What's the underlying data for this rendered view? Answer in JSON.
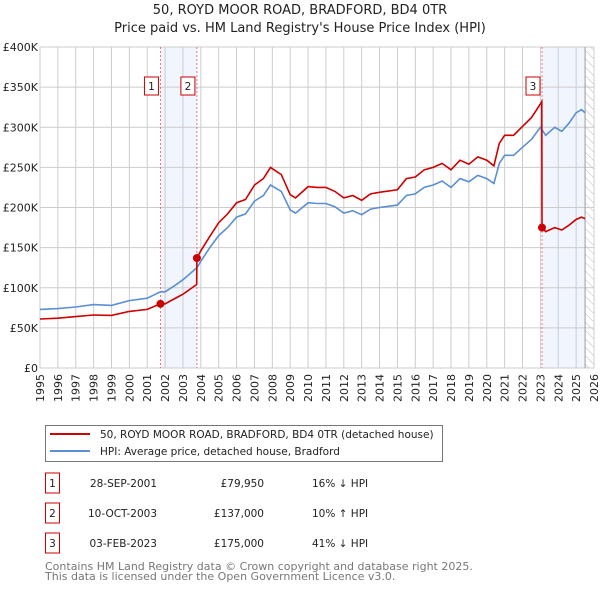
{
  "chart_data": {
    "type": "line",
    "title": "50, ROYD MOOR ROAD, BRADFORD, BD4 0TR",
    "subtitle": "Price paid vs. HM Land Registry's House Price Index (HPI)",
    "xlim": [
      1995,
      2026
    ],
    "ylim": [
      0,
      400000
    ],
    "grid": true,
    "x_ticks": [
      "1995",
      "1996",
      "1997",
      "1998",
      "1999",
      "2000",
      "2001",
      "2002",
      "2003",
      "2004",
      "2005",
      "2006",
      "2007",
      "2008",
      "2009",
      "2010",
      "2011",
      "2012",
      "2013",
      "2014",
      "2015",
      "2016",
      "2017",
      "2018",
      "2019",
      "2020",
      "2021",
      "2022",
      "2023",
      "2024",
      "2025",
      "2026"
    ],
    "y_ticks": [
      {
        "value": 0,
        "label": "£0"
      },
      {
        "value": 50000,
        "label": "£50K"
      },
      {
        "value": 100000,
        "label": "£100K"
      },
      {
        "value": 150000,
        "label": "£150K"
      },
      {
        "value": 200000,
        "label": "£200K"
      },
      {
        "value": 250000,
        "label": "£250K"
      },
      {
        "value": 300000,
        "label": "£300K"
      },
      {
        "value": 350000,
        "label": "£350K"
      },
      {
        "value": 400000,
        "label": "£400K"
      }
    ],
    "shaded_ranges": [
      [
        2001.74,
        2003.78
      ],
      [
        2023.09,
        2025.5
      ]
    ],
    "forecast_from": 2025.5,
    "legend_position": "below",
    "series": [
      {
        "name": "50, ROYD MOOR ROAD, BRADFORD, BD4 0TR (detached house)",
        "color": "#cc0000",
        "points": [
          [
            1995,
            61
          ],
          [
            1996,
            62
          ],
          [
            1997,
            64
          ],
          [
            1998,
            66
          ],
          [
            1999,
            65.5
          ],
          [
            2000,
            70.5
          ],
          [
            2001,
            73
          ],
          [
            2001.74,
            79.95
          ],
          [
            2002,
            80
          ],
          [
            2002.5,
            86
          ],
          [
            2003,
            92
          ],
          [
            2003.77,
            104
          ],
          [
            2003.78,
            137
          ],
          [
            2004,
            146
          ],
          [
            2004.5,
            164
          ],
          [
            2005,
            181
          ],
          [
            2005.5,
            192
          ],
          [
            2006,
            206
          ],
          [
            2006.5,
            210
          ],
          [
            2007,
            228
          ],
          [
            2007.5,
            236
          ],
          [
            2007.9,
            250
          ],
          [
            2008.5,
            241
          ],
          [
            2009,
            216
          ],
          [
            2009.3,
            212
          ],
          [
            2010,
            226
          ],
          [
            2010.5,
            225
          ],
          [
            2011,
            225
          ],
          [
            2011.5,
            220
          ],
          [
            2012,
            212
          ],
          [
            2012.5,
            215
          ],
          [
            2013,
            209
          ],
          [
            2013.5,
            217
          ],
          [
            2014,
            219
          ],
          [
            2015,
            222
          ],
          [
            2015.5,
            236
          ],
          [
            2016,
            238
          ],
          [
            2016.5,
            247
          ],
          [
            2017,
            250
          ],
          [
            2017.5,
            255
          ],
          [
            2018,
            247
          ],
          [
            2018.5,
            259
          ],
          [
            2019,
            254
          ],
          [
            2019.5,
            263
          ],
          [
            2020,
            259
          ],
          [
            2020.4,
            252
          ],
          [
            2020.7,
            280
          ],
          [
            2021,
            290
          ],
          [
            2021.5,
            290
          ],
          [
            2022,
            301
          ],
          [
            2022.5,
            312
          ],
          [
            2023,
            329
          ],
          [
            2023.08,
            332
          ],
          [
            2023.09,
            175
          ],
          [
            2023.3,
            170
          ],
          [
            2023.8,
            175
          ],
          [
            2024.2,
            172
          ],
          [
            2024.6,
            178
          ],
          [
            2025,
            185
          ],
          [
            2025.3,
            188
          ],
          [
            2025.5,
            186
          ]
        ]
      },
      {
        "name": "HPI: Average price, detached house, Bradford",
        "color": "#5b8fd4",
        "points": [
          [
            1995,
            73
          ],
          [
            1996,
            74
          ],
          [
            1997,
            76
          ],
          [
            1998,
            79
          ],
          [
            1999,
            78
          ],
          [
            2000,
            84
          ],
          [
            2001,
            87
          ],
          [
            2001.74,
            95
          ],
          [
            2002,
            95
          ],
          [
            2002.5,
            102
          ],
          [
            2003,
            110
          ],
          [
            2003.78,
            125
          ],
          [
            2004,
            133
          ],
          [
            2004.5,
            150
          ],
          [
            2005,
            165
          ],
          [
            2005.5,
            175
          ],
          [
            2006,
            188
          ],
          [
            2006.5,
            192
          ],
          [
            2007,
            208
          ],
          [
            2007.5,
            215
          ],
          [
            2007.9,
            228
          ],
          [
            2008.5,
            220
          ],
          [
            2009,
            197
          ],
          [
            2009.3,
            193
          ],
          [
            2010,
            206
          ],
          [
            2010.5,
            205
          ],
          [
            2011,
            205
          ],
          [
            2011.5,
            201
          ],
          [
            2012,
            193
          ],
          [
            2012.5,
            196
          ],
          [
            2013,
            191
          ],
          [
            2013.5,
            198
          ],
          [
            2014,
            200
          ],
          [
            2015,
            203
          ],
          [
            2015.5,
            215
          ],
          [
            2016,
            217
          ],
          [
            2016.5,
            225
          ],
          [
            2017,
            228
          ],
          [
            2017.5,
            233
          ],
          [
            2018,
            225
          ],
          [
            2018.5,
            236
          ],
          [
            2019,
            232
          ],
          [
            2019.5,
            240
          ],
          [
            2020,
            236
          ],
          [
            2020.4,
            230
          ],
          [
            2020.7,
            255
          ],
          [
            2021,
            265
          ],
          [
            2021.5,
            265
          ],
          [
            2022,
            275
          ],
          [
            2022.5,
            285
          ],
          [
            2023,
            300
          ],
          [
            2023.3,
            290
          ],
          [
            2023.8,
            300
          ],
          [
            2024.2,
            295
          ],
          [
            2024.6,
            305
          ],
          [
            2025,
            318
          ],
          [
            2025.3,
            322
          ],
          [
            2025.5,
            318
          ]
        ]
      }
    ],
    "sales": [
      {
        "num": "1",
        "x": 2001.74,
        "value": 79950,
        "date": "28-SEP-2001",
        "price": "£79,950",
        "hpi": "16% ↓ HPI"
      },
      {
        "num": "2",
        "x": 2003.78,
        "value": 137000,
        "date": "10-OCT-2003",
        "price": "£137,000",
        "hpi": "10% ↑ HPI"
      },
      {
        "num": "3",
        "x": 2023.09,
        "value": 175000,
        "date": "03-FEB-2023",
        "price": "£175,000",
        "hpi": "41% ↓ HPI"
      }
    ]
  },
  "footer": {
    "line1": "Contains HM Land Registry data © Crown copyright and database right 2025.",
    "line2": "This data is licensed under the Open Government Licence v3.0."
  }
}
